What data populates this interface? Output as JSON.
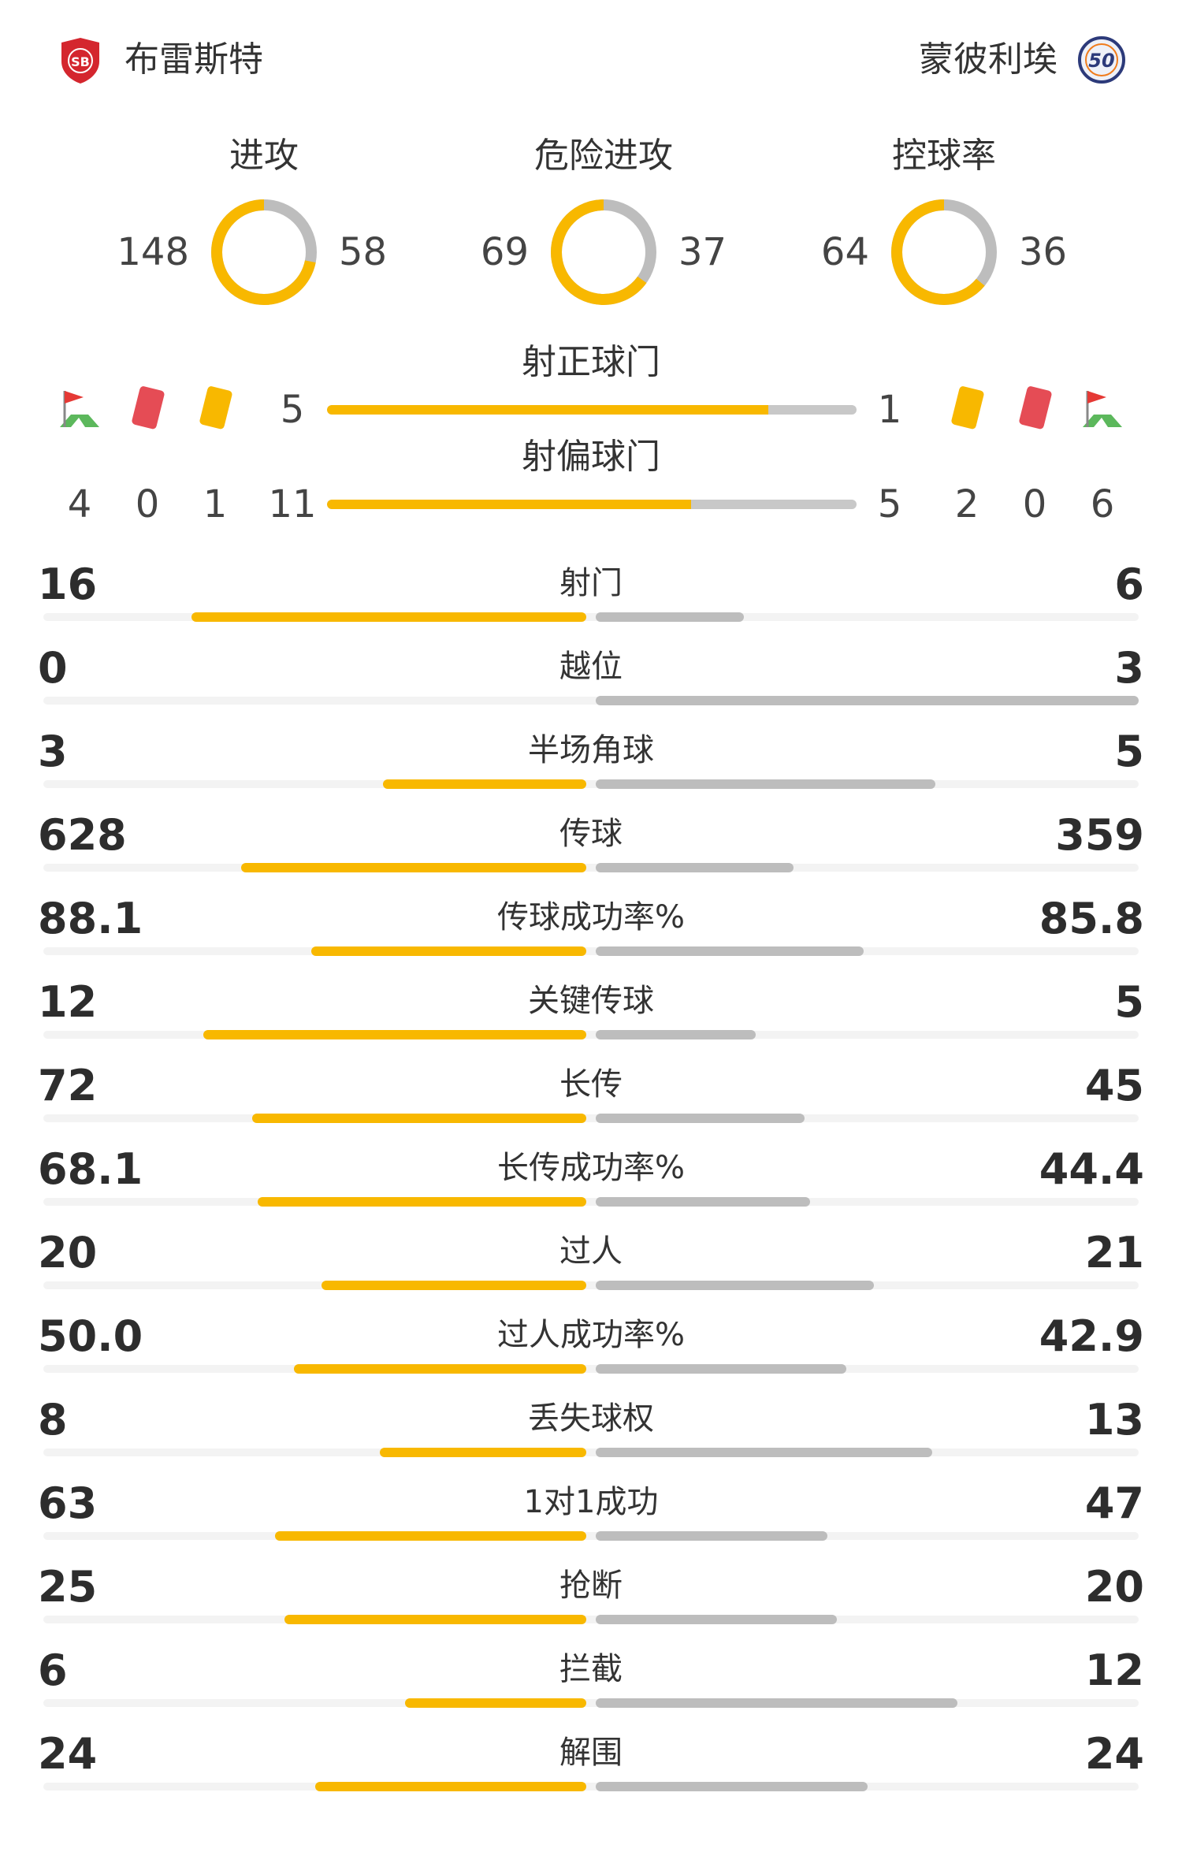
{
  "header": {
    "home": {
      "name": "布雷斯特",
      "logo_text": "SB"
    },
    "away": {
      "name": "蒙彼利埃",
      "logo_text": "50"
    }
  },
  "colors": {
    "home": "#f8b800",
    "away": "#bdbdbd"
  },
  "donuts": [
    {
      "label": "进攻",
      "home": 148,
      "away": 58
    },
    {
      "label": "危险进攻",
      "home": 69,
      "away": 37
    },
    {
      "label": "控球率",
      "home": 64,
      "away": 36
    }
  ],
  "shots": {
    "on_target": {
      "label": "射正球门",
      "home": 5,
      "away": 1
    },
    "off_target": {
      "label": "射偏球门",
      "home": 11,
      "away": 5
    }
  },
  "cards": {
    "home": {
      "corners": 4,
      "red": 0,
      "yellow": 1
    },
    "away": {
      "yellow": 2,
      "red": 0,
      "corners": 6
    }
  },
  "icons": {
    "corner": "corner-flag-icon",
    "red": "red-card-icon",
    "yellow": "yellow-card-icon"
  },
  "stats": [
    {
      "label": "射门",
      "home": "16",
      "away": "6"
    },
    {
      "label": "越位",
      "home": "0",
      "away": "3"
    },
    {
      "label": "半场角球",
      "home": "3",
      "away": "5"
    },
    {
      "label": "传球",
      "home": "628",
      "away": "359"
    },
    {
      "label": "传球成功率%",
      "home": "88.1",
      "away": "85.8"
    },
    {
      "label": "关键传球",
      "home": "12",
      "away": "5"
    },
    {
      "label": "长传",
      "home": "72",
      "away": "45"
    },
    {
      "label": "长传成功率%",
      "home": "68.1",
      "away": "44.4"
    },
    {
      "label": "过人",
      "home": "20",
      "away": "21"
    },
    {
      "label": "过人成功率%",
      "home": "50.0",
      "away": "42.9"
    },
    {
      "label": "丢失球权",
      "home": "8",
      "away": "13"
    },
    {
      "label": "1对1成功",
      "home": "63",
      "away": "47"
    },
    {
      "label": "抢断",
      "home": "25",
      "away": "20"
    },
    {
      "label": "拦截",
      "home": "6",
      "away": "12"
    },
    {
      "label": "解围",
      "home": "24",
      "away": "24"
    }
  ]
}
